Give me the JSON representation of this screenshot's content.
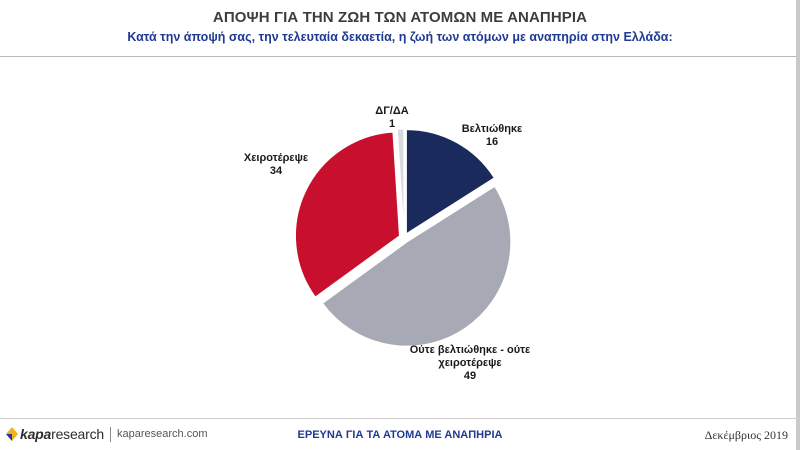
{
  "header": {
    "title": "ΑΠΟΨΗ ΓΙΑ ΤΗΝ ΖΩΗ ΤΩΝ ΑΤΟΜΩΝ ΜΕ ΑΝΑΠΗΡΙΑ",
    "subtitle": "Κατά την άποψή σας, την τελευταία δεκαετία, η ζωή των ατόμων με αναπηρία στην Ελλάδα:"
  },
  "chart_data": {
    "type": "pie",
    "title": "",
    "slices": [
      {
        "label": "Βελτιώθηκε",
        "value": 16,
        "color": "#1b2a5c"
      },
      {
        "label": "Ούτε βελτιώθηκε - ούτε χειροτέρεψε",
        "value": 49,
        "color": "#a7a9b5"
      },
      {
        "label": "Χειροτέρεψε",
        "value": 34,
        "color": "#c8102e"
      },
      {
        "label": "ΔΓ/ΔΑ",
        "value": 1,
        "color": "#d9dae0"
      }
    ],
    "start_angle_deg": 0,
    "direction": "clockwise",
    "exploded": true,
    "legend": "none",
    "data_labels": "outside"
  },
  "footer": {
    "logo_text_bold": "kapa",
    "logo_text": "research",
    "url": "kaparesearch.com",
    "center_text": "ΕΡΕΥΝΑ ΓΙΑ ΤΑ ΑΤΟΜΑ ΜΕ ΑΝΑΠΗΡΙΑ",
    "date": "Δεκέμβριος 2019"
  }
}
